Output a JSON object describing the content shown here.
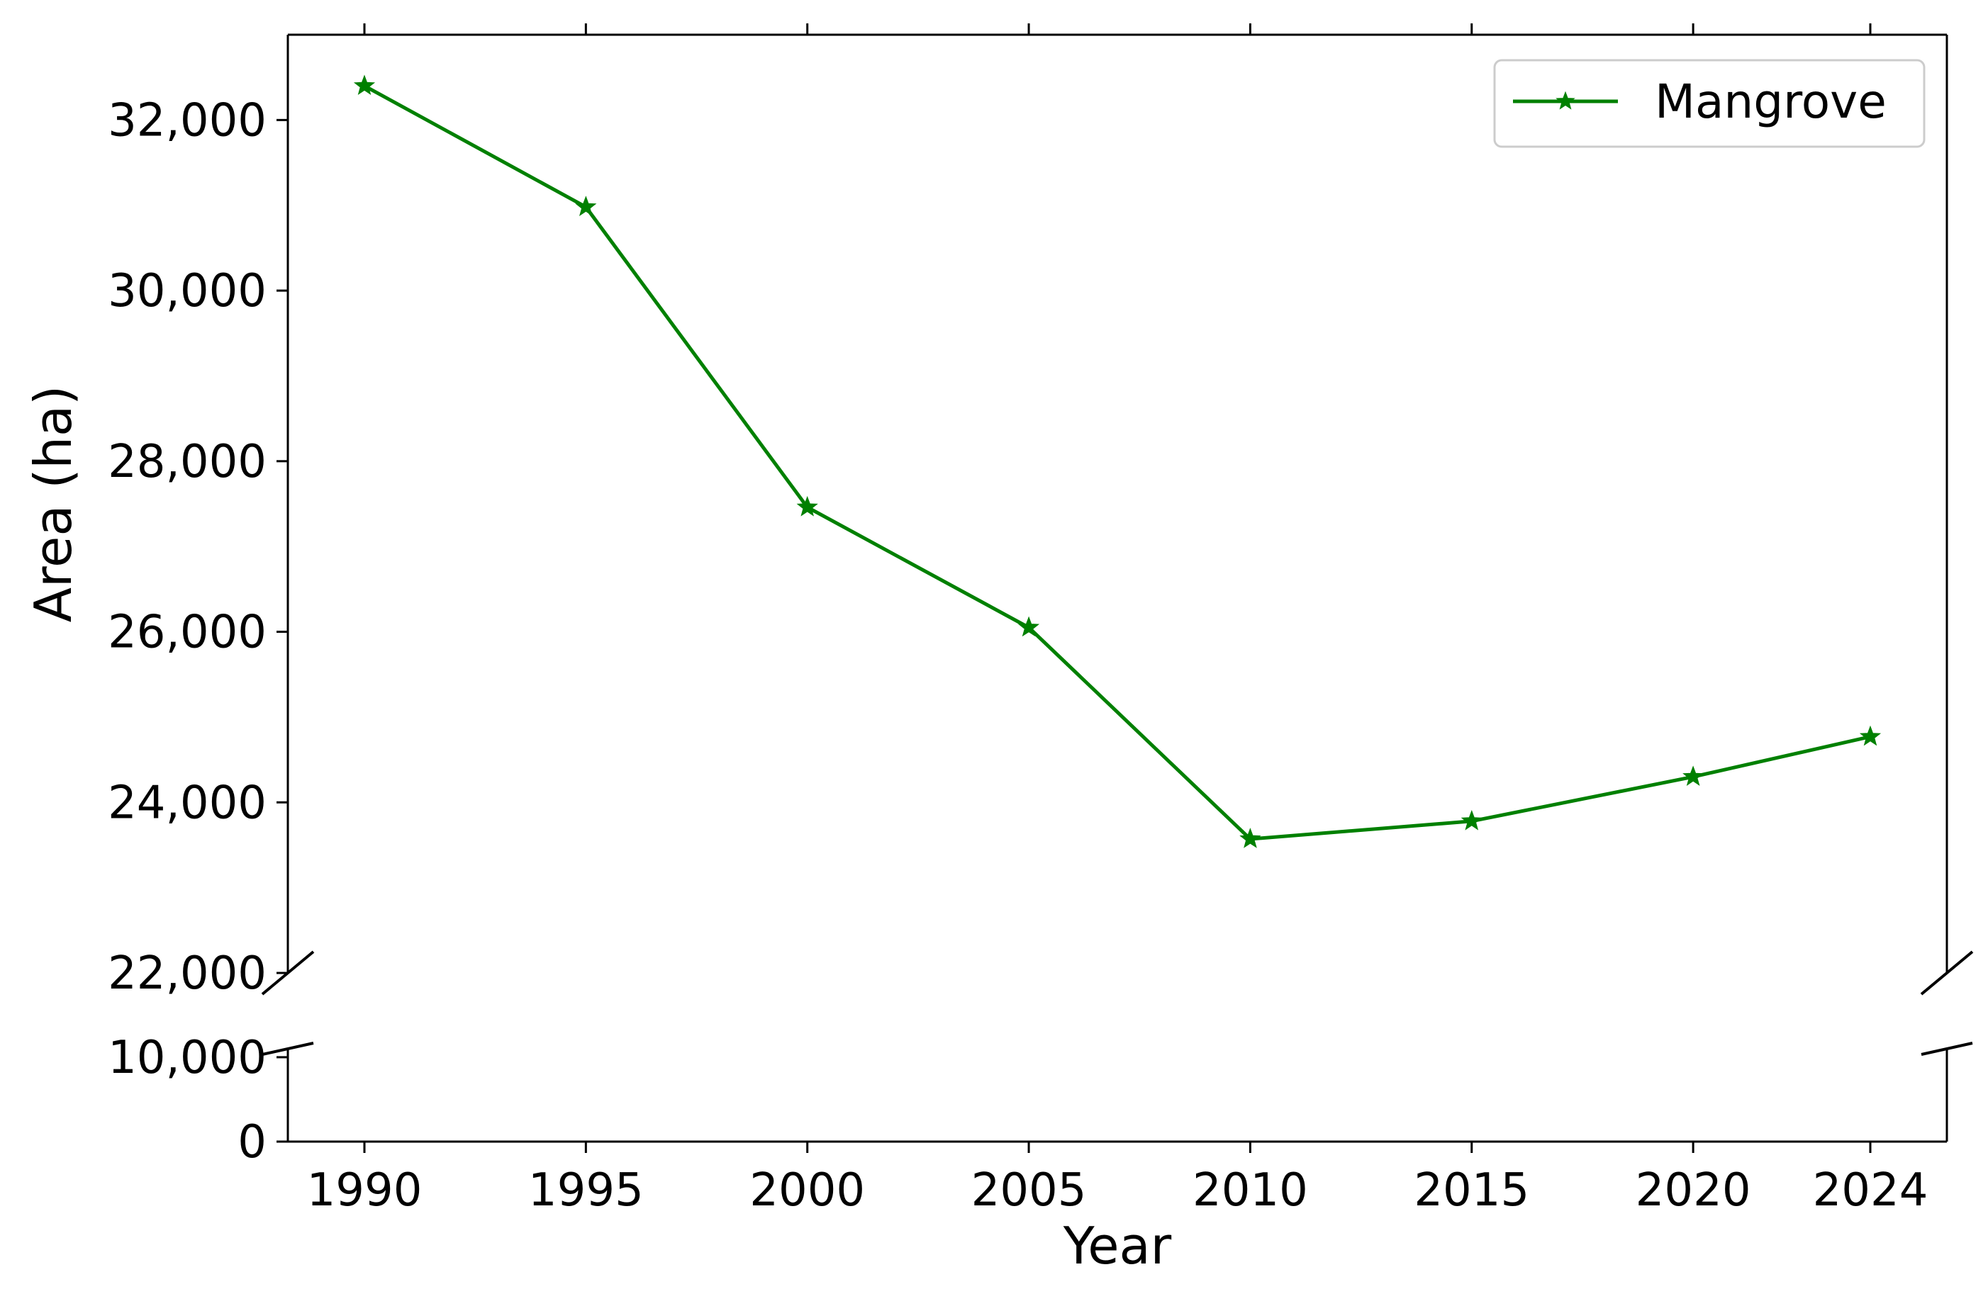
{
  "chart_data": {
    "type": "line",
    "xlabel": "Year",
    "ylabel": "Area (ha)",
    "categories": [
      "1990",
      "1995",
      "2000",
      "2005",
      "2010",
      "2015",
      "2020",
      "2024"
    ],
    "series": [
      {
        "name": "Mangrove",
        "color": "#008000",
        "marker": "star",
        "values": [
          32400,
          30980,
          27460,
          26050,
          23570,
          23780,
          24300,
          24770
        ]
      }
    ],
    "y_axis": {
      "broken": true,
      "upper_segment": {
        "ylim": [
          22000,
          33000
        ],
        "ticks": [
          22000,
          24000,
          26000,
          28000,
          30000,
          32000
        ],
        "tick_labels": [
          "22,000",
          "24,000",
          "26,000",
          "28,000",
          "30,000",
          "32,000"
        ]
      },
      "lower_segment": {
        "ylim": [
          0,
          11000
        ],
        "ticks": [
          0,
          10000
        ],
        "tick_labels": [
          "0",
          "10,000"
        ]
      }
    },
    "legend_position": "top-right",
    "grid": false
  }
}
